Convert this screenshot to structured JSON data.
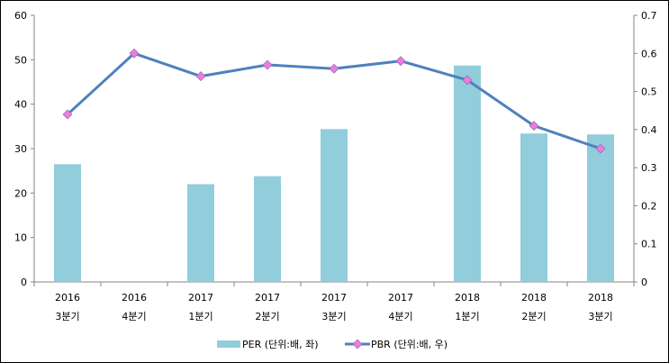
{
  "chart_data": {
    "type": "bar+line",
    "categories": [
      [
        "2016",
        "3분기"
      ],
      [
        "2016",
        "4분기"
      ],
      [
        "2017",
        "1분기"
      ],
      [
        "2017",
        "2분기"
      ],
      [
        "2017",
        "3분기"
      ],
      [
        "2017",
        "4분기"
      ],
      [
        "2018",
        "1분기"
      ],
      [
        "2018",
        "2분기"
      ],
      [
        "2018",
        "3분기"
      ]
    ],
    "series": [
      {
        "name": "PER (단위:배, 좌)",
        "type": "bar",
        "axis": "left",
        "color": "#92CDDC",
        "values": [
          26.5,
          null,
          22.0,
          23.8,
          34.4,
          null,
          48.7,
          33.4,
          33.2
        ]
      },
      {
        "name": "PBR (단위:배, 우)",
        "type": "line",
        "axis": "right",
        "color": "#4F81BD",
        "marker_color": "#F07BD9",
        "values": [
          0.44,
          0.6,
          0.54,
          0.57,
          0.56,
          0.58,
          0.53,
          0.41,
          0.35
        ]
      }
    ],
    "left_axis": {
      "ylim": [
        0,
        60
      ],
      "ticks": [
        "0",
        "10",
        "20",
        "30",
        "40",
        "50",
        "60"
      ]
    },
    "right_axis": {
      "ylim": [
        0,
        0.7
      ],
      "ticks": [
        "0",
        "0.1",
        "0.2",
        "0.3",
        "0.4",
        "0.5",
        "0.6",
        "0.7"
      ]
    },
    "grid": false,
    "legend": "bottom"
  }
}
